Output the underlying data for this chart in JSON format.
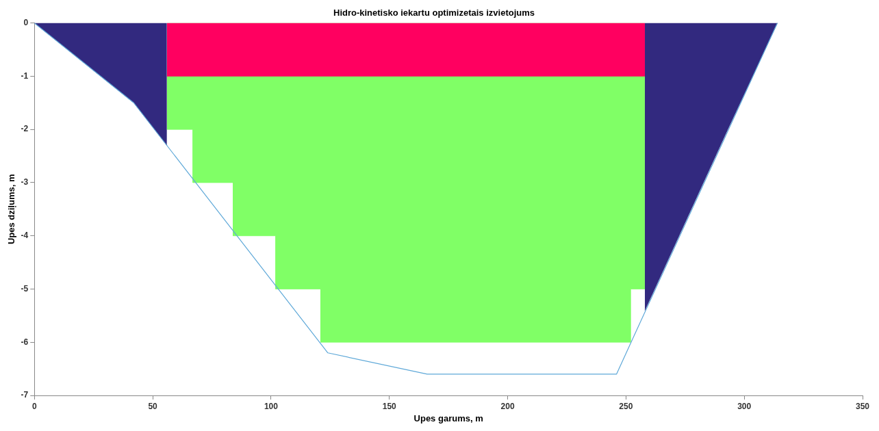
{
  "chart_data": {
    "type": "area",
    "title": "Hidro-kinetisko iekartu optimizetais izvietojums",
    "xlabel": "Upes garums, m",
    "ylabel": "Upes dziļums, m",
    "xlim": [
      0,
      350
    ],
    "xticks": [
      0,
      50,
      100,
      150,
      200,
      250,
      300,
      350
    ],
    "ylim": [
      -7,
      0
    ],
    "yticks": [
      -7,
      -6,
      -5,
      -4,
      -3,
      -2,
      -1,
      0
    ],
    "legend": false,
    "marker": "none",
    "series": [
      {
        "type": "line",
        "color": "#5ea8d8",
        "x": [
          0,
          42,
          124,
          166,
          246,
          314
        ],
        "values": [
          0,
          -1.5,
          -6.2,
          -6.6,
          -6.6,
          0
        ]
      },
      {
        "type": "area",
        "color": "#ff0060",
        "x": [
          56,
          258
        ],
        "values": [
          -1,
          -1
        ]
      },
      {
        "type": "area",
        "color": "#80ff66",
        "x": [
          56,
          67,
          67,
          84,
          84,
          102,
          102,
          121,
          121,
          252,
          252,
          258
        ],
        "values": [
          -2,
          -2,
          -3,
          -3,
          -4,
          -4,
          -5,
          -5,
          -6,
          -6,
          -5,
          -5
        ]
      },
      {
        "type": "area",
        "color": "#32297f",
        "x": [
          0,
          42,
          56
        ],
        "values": [
          0,
          -1.5,
          -2.3
        ]
      },
      {
        "type": "area",
        "color": "#32297f",
        "x": [
          258,
          293,
          314
        ],
        "values": [
          -5.4,
          -2,
          0
        ]
      }
    ]
  }
}
